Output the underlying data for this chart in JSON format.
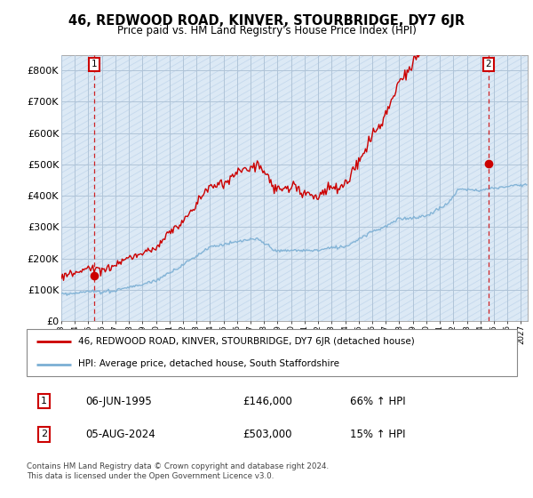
{
  "title": "46, REDWOOD ROAD, KINVER, STOURBRIDGE, DY7 6JR",
  "subtitle": "Price paid vs. HM Land Registry's House Price Index (HPI)",
  "ylim": [
    0,
    850000
  ],
  "yticks": [
    0,
    100000,
    200000,
    300000,
    400000,
    500000,
    600000,
    700000,
    800000
  ],
  "ytick_labels": [
    "£0",
    "£100K",
    "£200K",
    "£300K",
    "£400K",
    "£500K",
    "£600K",
    "£700K",
    "£800K"
  ],
  "sale1_year": 1995.417,
  "sale1_price": 146000,
  "sale2_year": 2024.583,
  "sale2_price": 503000,
  "legend_line1": "46, REDWOOD ROAD, KINVER, STOURBRIDGE, DY7 6JR (detached house)",
  "legend_line2": "HPI: Average price, detached house, South Staffordshire",
  "table_row1": [
    "1",
    "06-JUN-1995",
    "£146,000",
    "66% ↑ HPI"
  ],
  "table_row2": [
    "2",
    "05-AUG-2024",
    "£503,000",
    "15% ↑ HPI"
  ],
  "footer": "Contains HM Land Registry data © Crown copyright and database right 2024.\nThis data is licensed under the Open Government Licence v3.0.",
  "property_color": "#cc0000",
  "hpi_color": "#7bafd4",
  "bg_color": "#dce9f5",
  "hatch_color": "#c5d9ed",
  "grid_color": "#b0c4d8"
}
